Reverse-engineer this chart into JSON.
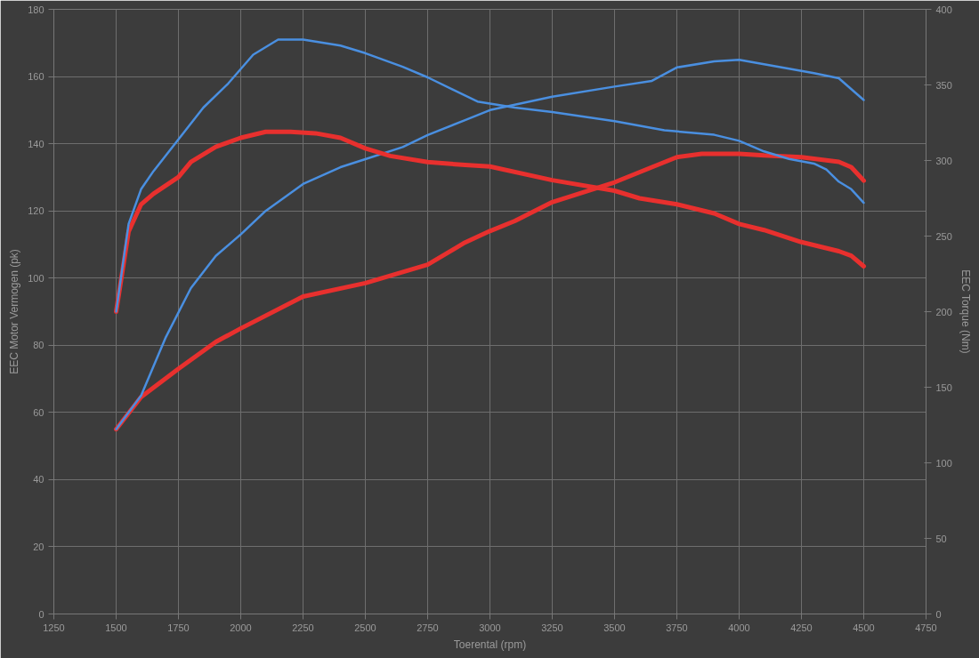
{
  "chart_data": {
    "type": "line",
    "xlabel": "Toerental (rpm)",
    "ylabel": "EEC Motor Vermogen (pk)",
    "y2label": "EEC Torque (Nm)",
    "xlim": [
      1250,
      4750
    ],
    "xticks": [
      1250,
      1500,
      1750,
      2000,
      2250,
      2500,
      2750,
      3000,
      3250,
      3500,
      3750,
      4000,
      4250,
      4500,
      4750
    ],
    "ylim": [
      0,
      180
    ],
    "yticks": [
      0,
      20,
      40,
      60,
      80,
      100,
      120,
      140,
      160,
      180
    ],
    "y2lim": [
      0,
      400
    ],
    "y2ticks": [
      0,
      50,
      100,
      150,
      200,
      250,
      300,
      350,
      400
    ],
    "grid": true,
    "marker": "none",
    "line_style": "solid",
    "series": [
      {
        "color": "#e8302e",
        "x": [
          1500,
          1600,
          1750,
          1900,
          2000,
          2250,
          2500,
          2750,
          2900,
          3000,
          3100,
          3250,
          3500,
          3650,
          3750,
          3850,
          4000,
          4100,
          4250,
          4400,
          4450,
          4500
        ],
        "values": [
          55,
          64.6,
          73,
          81,
          85,
          94.5,
          98.5,
          104,
          110.6,
          114,
          117,
          122.6,
          128.5,
          133,
          136,
          137,
          137,
          136.5,
          136,
          134.6,
          133,
          129
        ]
      },
      {
        "color": "#4a8fe0",
        "x": [
          1500,
          1600,
          1700,
          1800,
          1900,
          2000,
          2100,
          2250,
          2400,
          2500,
          2650,
          2750,
          2900,
          3000,
          3250,
          3500,
          3650,
          3750,
          3900,
          4000,
          4150,
          4300,
          4400,
          4500
        ],
        "values": [
          55,
          65,
          82.5,
          97,
          106.6,
          113,
          120,
          128,
          133,
          135.4,
          139,
          142.6,
          147,
          150,
          154,
          157,
          158.7,
          162.7,
          164.5,
          165,
          163,
          161,
          159.5,
          153
        ]
      },
      {
        "color": "#e8302e",
        "axis": "y2",
        "x": [
          1500,
          1550,
          1600,
          1650,
          1750,
          1800,
          1900,
          2000,
          2100,
          2200,
          2300,
          2400,
          2500,
          2600,
          2750,
          2900,
          3000,
          3250,
          3500,
          3600,
          3750,
          3900,
          4000,
          4100,
          4250,
          4400,
          4450,
          4500
        ],
        "values": [
          200,
          253,
          271,
          278,
          289,
          299,
          309,
          315,
          319,
          319,
          318,
          315,
          308,
          303,
          299,
          297,
          296,
          287,
          280,
          275,
          271,
          265,
          258,
          254,
          246,
          240,
          237,
          230
        ]
      },
      {
        "color": "#4a8fe0",
        "axis": "y2",
        "x": [
          1500,
          1550,
          1600,
          1650,
          1750,
          1850,
          1950,
          2050,
          2150,
          2250,
          2400,
          2500,
          2650,
          2750,
          2850,
          2950,
          3100,
          3250,
          3500,
          3700,
          3900,
          4000,
          4100,
          4200,
          4300,
          4350,
          4400,
          4450,
          4500
        ],
        "values": [
          200,
          258,
          281,
          293,
          314,
          335,
          351,
          370,
          380,
          380,
          376,
          371,
          362,
          355,
          347,
          339,
          335,
          332,
          326,
          320,
          317,
          313,
          306,
          301,
          298,
          294,
          286,
          281,
          272
        ]
      }
    ]
  }
}
